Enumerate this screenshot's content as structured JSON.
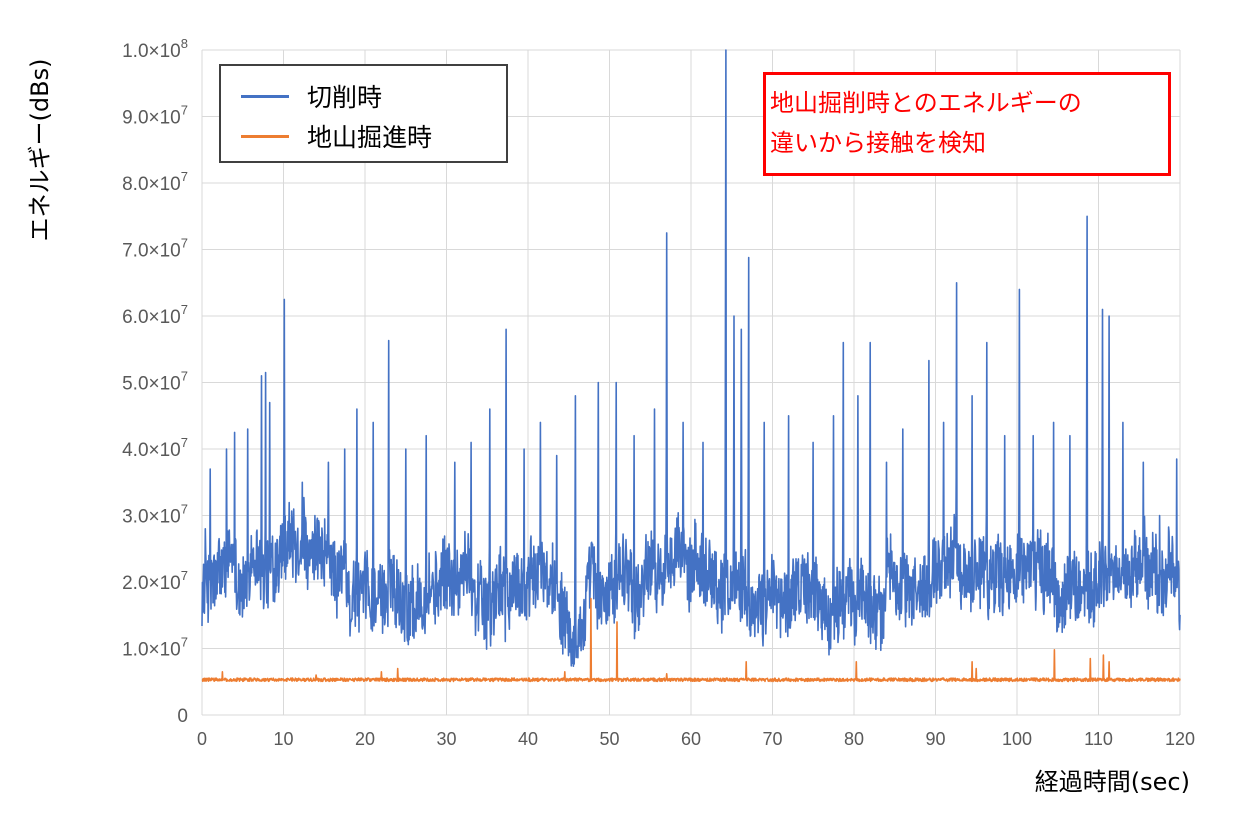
{
  "chart_data": {
    "type": "line",
    "ylabel": "エネルギー(dBs)",
    "xlabel": "経過時間(sec)",
    "xlim": [
      0,
      120
    ],
    "ylim": [
      0,
      100000000
    ],
    "grid": true,
    "legend_position": "top-left",
    "x_ticks": [
      "0",
      "10",
      "20",
      "30",
      "40",
      "50",
      "60",
      "70",
      "80",
      "90",
      "100",
      "110",
      "120"
    ],
    "y_ticks": [
      {
        "value": 0,
        "mantissa": "0",
        "exp": ""
      },
      {
        "value": 10000000,
        "mantissa": "1.0×10",
        "exp": "7"
      },
      {
        "value": 20000000,
        "mantissa": "2.0×10",
        "exp": "7"
      },
      {
        "value": 30000000,
        "mantissa": "3.0×10",
        "exp": "7"
      },
      {
        "value": 40000000,
        "mantissa": "4.0×10",
        "exp": "7"
      },
      {
        "value": 50000000,
        "mantissa": "5.0×10",
        "exp": "7"
      },
      {
        "value": 60000000,
        "mantissa": "6.0×10",
        "exp": "7"
      },
      {
        "value": 70000000,
        "mantissa": "7.0×10",
        "exp": "7"
      },
      {
        "value": 80000000,
        "mantissa": "8.0×10",
        "exp": "7"
      },
      {
        "value": 90000000,
        "mantissa": "9.0×10",
        "exp": "7"
      },
      {
        "value": 100000000,
        "mantissa": "1.0×10",
        "exp": "8"
      }
    ],
    "series": [
      {
        "name": "切削時",
        "color": "#4472c4",
        "baseline_mean": 19500000,
        "fluctuation": 6500000,
        "peaks": [
          {
            "x": 0.4,
            "y": 28000000
          },
          {
            "x": 1.0,
            "y": 37000000
          },
          {
            "x": 3.0,
            "y": 40000000
          },
          {
            "x": 4.0,
            "y": 42500000
          },
          {
            "x": 5.6,
            "y": 43000000
          },
          {
            "x": 7.3,
            "y": 51000000
          },
          {
            "x": 7.8,
            "y": 51500000
          },
          {
            "x": 8.3,
            "y": 47000000
          },
          {
            "x": 10.1,
            "y": 62500000
          },
          {
            "x": 12.3,
            "y": 35000000
          },
          {
            "x": 15.5,
            "y": 38000000
          },
          {
            "x": 17.5,
            "y": 40000000
          },
          {
            "x": 19.0,
            "y": 46000000
          },
          {
            "x": 21.0,
            "y": 44000000
          },
          {
            "x": 22.9,
            "y": 56300000
          },
          {
            "x": 25.0,
            "y": 40000000
          },
          {
            "x": 27.5,
            "y": 42000000
          },
          {
            "x": 31.0,
            "y": 38000000
          },
          {
            "x": 33.0,
            "y": 41000000
          },
          {
            "x": 35.3,
            "y": 46000000
          },
          {
            "x": 37.3,
            "y": 58000000
          },
          {
            "x": 39.5,
            "y": 40000000
          },
          {
            "x": 41.5,
            "y": 44000000
          },
          {
            "x": 43.5,
            "y": 39000000
          },
          {
            "x": 45.8,
            "y": 48000000
          },
          {
            "x": 48.6,
            "y": 50000000
          },
          {
            "x": 50.8,
            "y": 50000000
          },
          {
            "x": 53.0,
            "y": 42000000
          },
          {
            "x": 55.5,
            "y": 46000000
          },
          {
            "x": 57.0,
            "y": 72500000
          },
          {
            "x": 59.0,
            "y": 44000000
          },
          {
            "x": 61.5,
            "y": 41000000
          },
          {
            "x": 64.3,
            "y": 100000000
          },
          {
            "x": 65.3,
            "y": 60000000
          },
          {
            "x": 66.2,
            "y": 58000000
          },
          {
            "x": 67.1,
            "y": 68800000
          },
          {
            "x": 69.0,
            "y": 44000000
          },
          {
            "x": 72.0,
            "y": 45000000
          },
          {
            "x": 75.0,
            "y": 41000000
          },
          {
            "x": 77.5,
            "y": 45000000
          },
          {
            "x": 78.7,
            "y": 56000000
          },
          {
            "x": 80.5,
            "y": 48000000
          },
          {
            "x": 82.0,
            "y": 56000000
          },
          {
            "x": 84.0,
            "y": 38000000
          },
          {
            "x": 86.0,
            "y": 43000000
          },
          {
            "x": 89.2,
            "y": 53300000
          },
          {
            "x": 91.0,
            "y": 44000000
          },
          {
            "x": 92.6,
            "y": 65000000
          },
          {
            "x": 94.5,
            "y": 48000000
          },
          {
            "x": 96.3,
            "y": 56000000
          },
          {
            "x": 98.5,
            "y": 42000000
          },
          {
            "x": 100.3,
            "y": 64000000
          },
          {
            "x": 102.0,
            "y": 42000000
          },
          {
            "x": 104.5,
            "y": 44000000
          },
          {
            "x": 106.5,
            "y": 42000000
          },
          {
            "x": 108.6,
            "y": 75000000
          },
          {
            "x": 110.5,
            "y": 61000000
          },
          {
            "x": 111.3,
            "y": 60000000
          },
          {
            "x": 113.0,
            "y": 44000000
          },
          {
            "x": 115.5,
            "y": 38000000
          },
          {
            "x": 117.5,
            "y": 30000000
          },
          {
            "x": 119.6,
            "y": 38500000
          }
        ]
      },
      {
        "name": "地山掘進時",
        "color": "#ed7d31",
        "baseline_mean": 5300000,
        "fluctuation": 500000,
        "peaks": [
          {
            "x": 2.5,
            "y": 6500000
          },
          {
            "x": 14.0,
            "y": 6000000
          },
          {
            "x": 22.0,
            "y": 6500000
          },
          {
            "x": 24.0,
            "y": 7000000
          },
          {
            "x": 44.5,
            "y": 6500000
          },
          {
            "x": 47.7,
            "y": 17500000
          },
          {
            "x": 50.9,
            "y": 14000000
          },
          {
            "x": 57.0,
            "y": 6200000
          },
          {
            "x": 66.8,
            "y": 8000000
          },
          {
            "x": 80.3,
            "y": 8000000
          },
          {
            "x": 94.5,
            "y": 8000000
          },
          {
            "x": 95.0,
            "y": 7000000
          },
          {
            "x": 104.6,
            "y": 9800000
          },
          {
            "x": 109.0,
            "y": 8500000
          },
          {
            "x": 110.6,
            "y": 9000000
          },
          {
            "x": 111.3,
            "y": 8000000
          }
        ]
      }
    ],
    "annotations": [
      "地山掘削時とのエネルギーの",
      "違いから接触を検知"
    ]
  }
}
